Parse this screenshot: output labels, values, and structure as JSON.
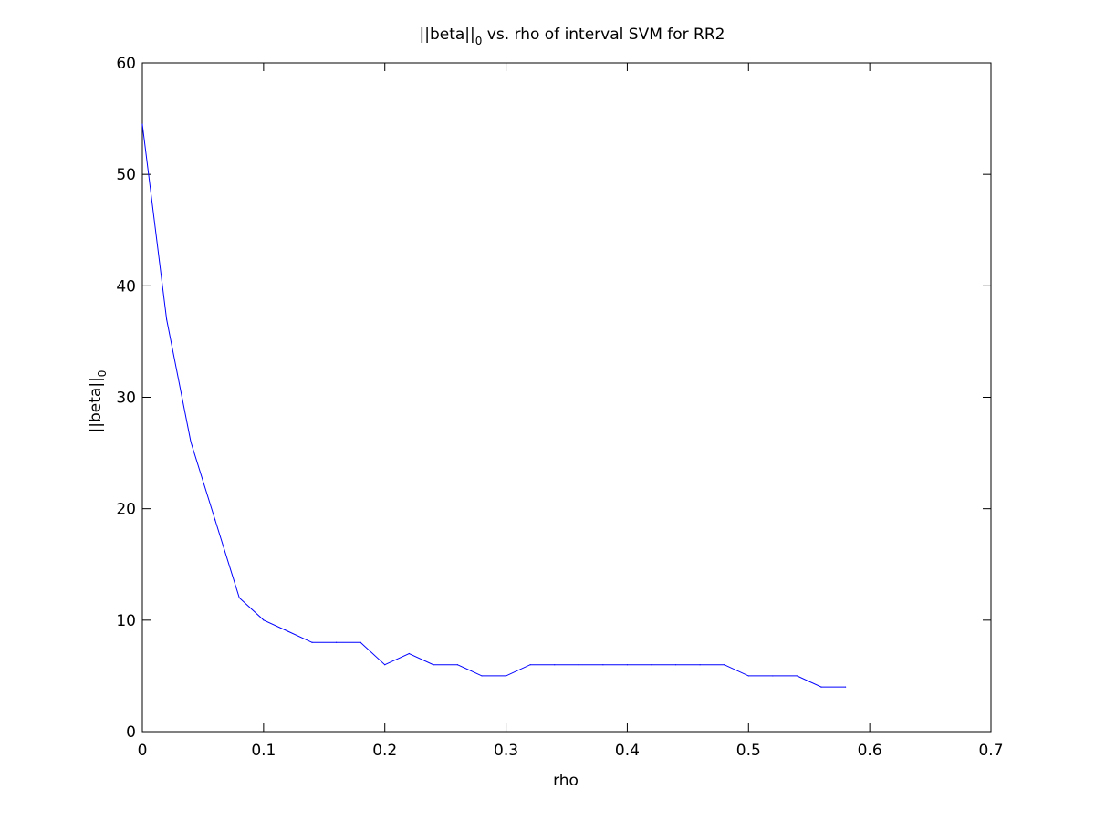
{
  "chart_data": {
    "type": "line",
    "title": {
      "prefix": "||beta||",
      "subscript": "0",
      "suffix": " vs. rho of interval SVM for RR2"
    },
    "xlabel": "rho",
    "ylabel": {
      "main": "||beta||",
      "subscript": "0"
    },
    "xlim": [
      0,
      0.7
    ],
    "ylim": [
      0,
      60
    ],
    "xticks": [
      "0",
      "0.1",
      "0.2",
      "0.3",
      "0.4",
      "0.5",
      "0.6",
      "0.7"
    ],
    "yticks": [
      "0",
      "10",
      "20",
      "30",
      "40",
      "50",
      "60"
    ],
    "grid": false,
    "legend": "none",
    "series": [
      {
        "color": "#0000ff",
        "x": [
          0,
          0.02,
          0.04,
          0.06,
          0.08,
          0.1,
          0.12,
          0.14,
          0.16,
          0.18,
          0.2,
          0.22,
          0.24,
          0.26,
          0.28,
          0.3,
          0.32,
          0.34,
          0.36,
          0.38,
          0.4,
          0.42,
          0.44,
          0.46,
          0.48,
          0.5,
          0.52,
          0.54,
          0.56,
          0.58
        ],
        "y": [
          54.5,
          37,
          26,
          19,
          12,
          10,
          9,
          8,
          8,
          8,
          6,
          7,
          6,
          6,
          5,
          5,
          6,
          6,
          6,
          6,
          6,
          6,
          6,
          6,
          6,
          5,
          5,
          5,
          4,
          4
        ]
      }
    ]
  }
}
